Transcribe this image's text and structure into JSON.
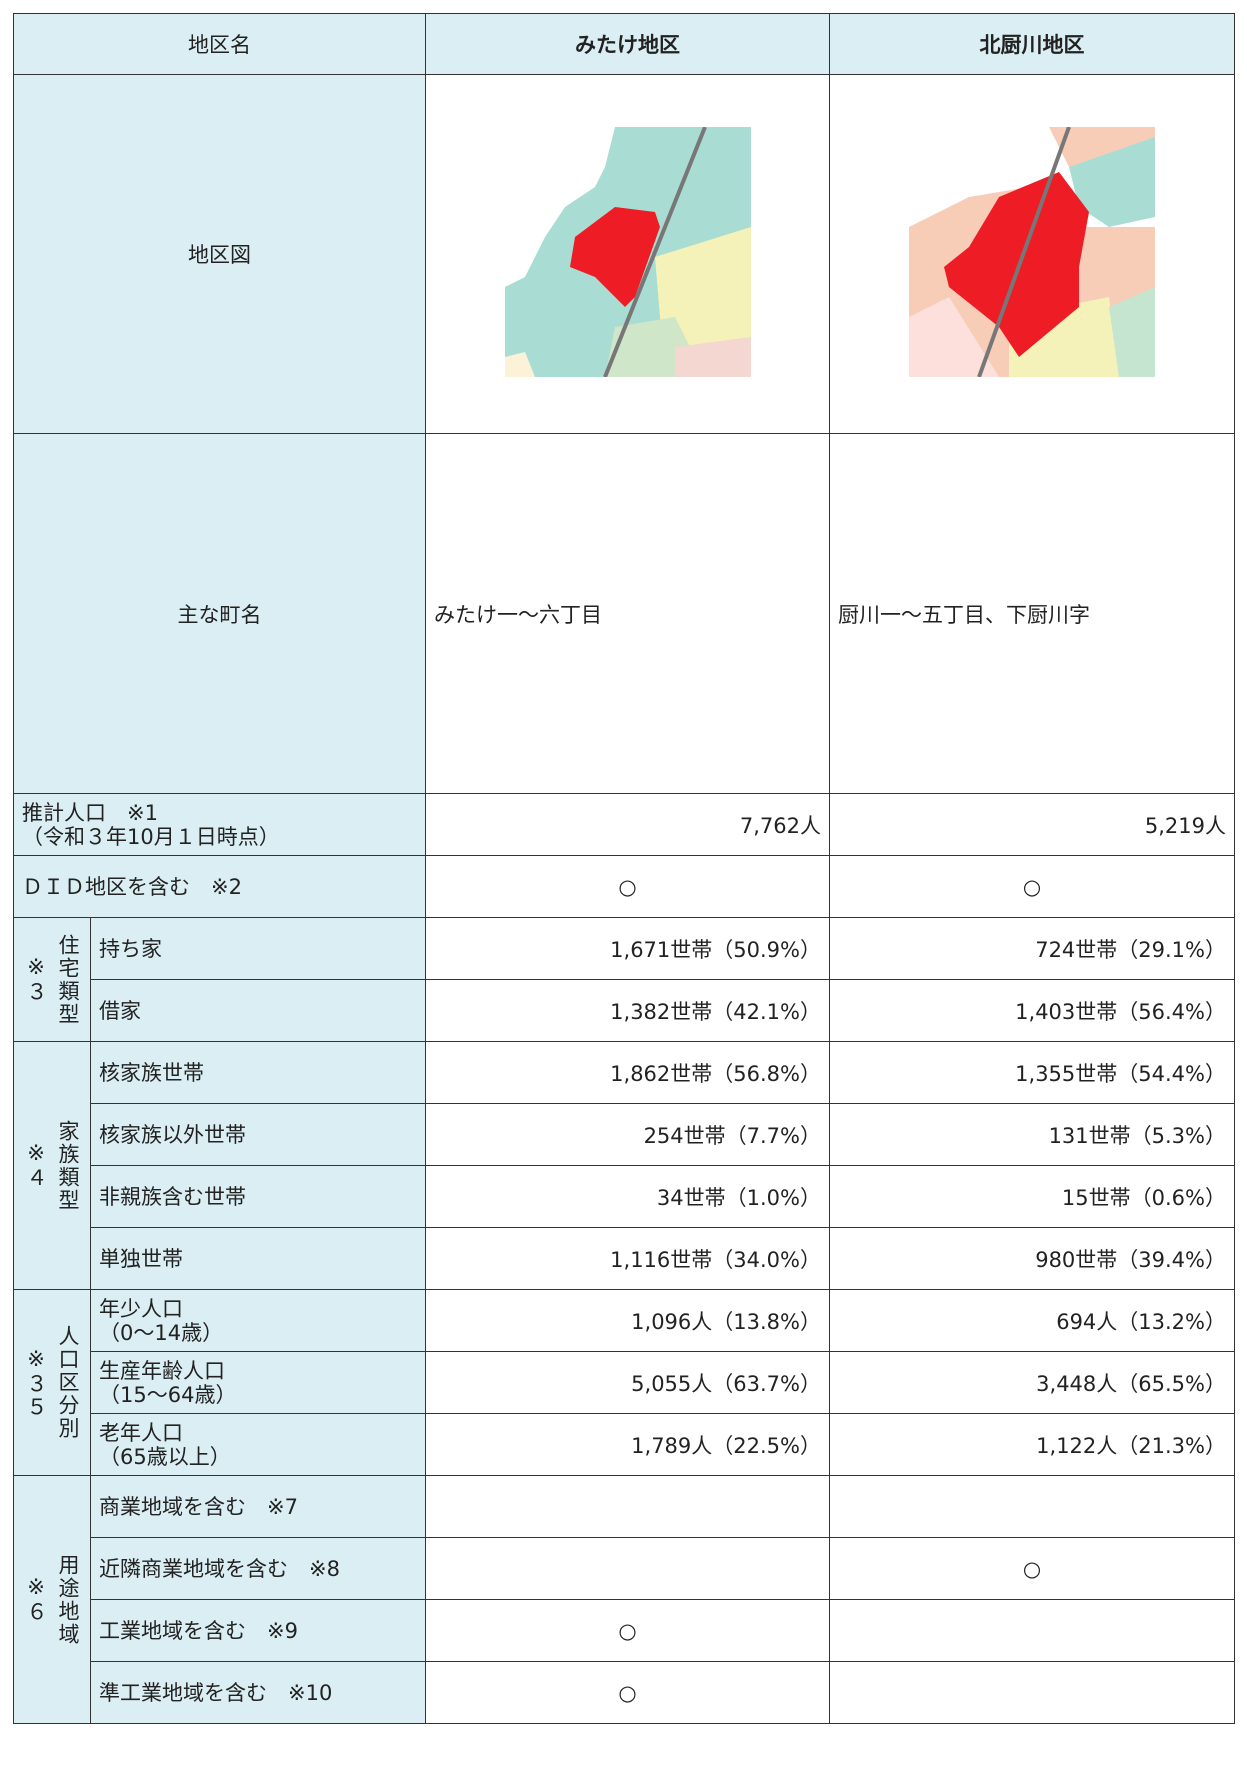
{
  "header": {
    "label": "地区名",
    "districts": [
      "みたけ地区",
      "北厨川地区"
    ]
  },
  "map_row": {
    "label": "地区図"
  },
  "towns": {
    "label": "主な町名",
    "values": [
      "みたけ一～六丁目",
      "厨川一～五丁目、下厨川字"
    ]
  },
  "population": {
    "label": "推計人口　※1",
    "sublabel": "（令和３年10月１日時点）",
    "values": [
      "7,762人",
      "5,219人"
    ]
  },
  "did": {
    "label": "ＤＩＤ地区を含む　※2",
    "values": [
      "○",
      "○"
    ]
  },
  "groups": [
    {
      "label": "住宅類型",
      "note": "※３",
      "rows": [
        {
          "label": "持ち家",
          "values": [
            "1,671世帯（50.9%）",
            "724世帯（29.1%）"
          ]
        },
        {
          "label": "借家",
          "values": [
            "1,382世帯（42.1%）",
            "1,403世帯（56.4%）"
          ]
        }
      ]
    },
    {
      "label": "家族類型",
      "note": "※４",
      "rows": [
        {
          "label": "核家族世帯",
          "values": [
            "1,862世帯（56.8%）",
            "1,355世帯（54.4%）"
          ]
        },
        {
          "label": "核家族以外世帯",
          "values": [
            "254世帯（7.7%）",
            "131世帯（5.3%）"
          ]
        },
        {
          "label": "非親族含む世帯",
          "values": [
            "34世帯（1.0%）",
            "15世帯（0.6%）"
          ]
        },
        {
          "label": "単独世帯",
          "values": [
            "1,116世帯（34.0%）",
            "980世帯（39.4%）"
          ]
        }
      ]
    },
    {
      "label": "人口区分別",
      "note": "※３５",
      "rows": [
        {
          "label": "年少人口",
          "sublabel": "（0～14歳）",
          "values": [
            "1,096人（13.8%）",
            "694人（13.2%）"
          ]
        },
        {
          "label": "生産年齢人口",
          "sublabel": "（15～64歳）",
          "values": [
            "5,055人（63.7%）",
            "3,448人（65.5%）"
          ]
        },
        {
          "label": "老年人口",
          "sublabel": "（65歳以上）",
          "values": [
            "1,789人（22.5%）",
            "1,122人（21.3%）"
          ]
        }
      ]
    },
    {
      "label": "用途地域",
      "note": "※６",
      "rows": [
        {
          "label": "商業地域を含む　※7",
          "values": [
            null,
            null
          ]
        },
        {
          "label": "近隣商業地域を含む　※8",
          "values": [
            null,
            "○"
          ]
        },
        {
          "label": "工業地域を含む　※9",
          "values": [
            "○",
            null
          ]
        },
        {
          "label": "準工業地域を含む　※10",
          "values": [
            "○",
            null
          ]
        }
      ]
    }
  ]
}
